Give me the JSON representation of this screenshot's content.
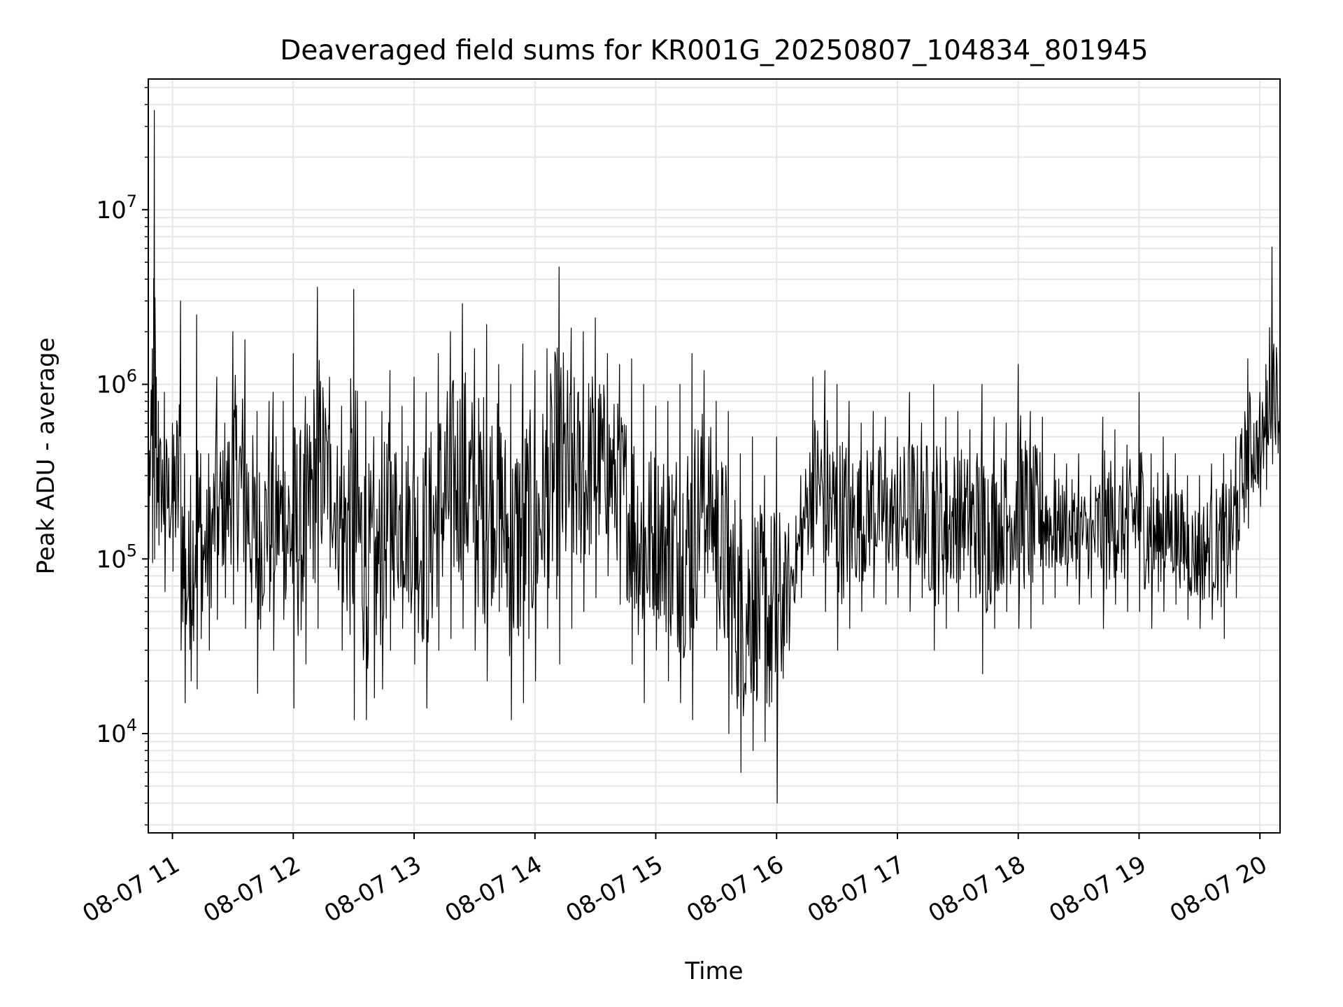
{
  "chart_data": {
    "type": "line",
    "title": "Deaveraged field sums for KR001G_20250807_104834_801945",
    "xlabel": "Time",
    "ylabel": "Peak ADU - average",
    "x_axis": {
      "type": "time",
      "range": [
        "2025-08-07 10:48",
        "2025-08-07 20:10"
      ],
      "ticks": [
        "2025-08-07 11:00",
        "2025-08-07 12:00",
        "2025-08-07 13:00",
        "2025-08-07 14:00",
        "2025-08-07 15:00",
        "2025-08-07 16:00",
        "2025-08-07 17:00",
        "2025-08-07 18:00",
        "2025-08-07 19:00",
        "2025-08-07 20:00"
      ],
      "tick_labels": [
        "08-07 11",
        "08-07 12",
        "08-07 13",
        "08-07 14",
        "08-07 15",
        "08-07 16",
        "08-07 17",
        "08-07 18",
        "08-07 19",
        "08-07 20"
      ],
      "tick_label_rotation": 30
    },
    "y_axis": {
      "scale": "log",
      "range": [
        2700,
        56000000
      ],
      "major_ticks": [
        10000,
        100000,
        1000000,
        10000000
      ],
      "tick_labels": [
        {
          "base": "10",
          "exp": "4"
        },
        {
          "base": "10",
          "exp": "5"
        },
        {
          "base": "10",
          "exp": "6"
        },
        {
          "base": "10",
          "exp": "7"
        }
      ]
    },
    "grid": true,
    "legend": "none",
    "line_color": "#000000",
    "grid_color": "#e6e6e6",
    "series": [
      {
        "x": [
          "2025-08-07 10:48",
          "2025-08-07 10:50",
          "2025-08-07 10:51",
          "2025-08-07 10:52",
          "2025-08-07 10:53",
          "2025-08-07 10:56",
          "2025-08-07 11:00",
          "2025-08-07 11:04",
          "2025-08-07 11:06",
          "2025-08-07 11:09",
          "2025-08-07 11:12",
          "2025-08-07 11:14",
          "2025-08-07 11:18",
          "2025-08-07 11:22",
          "2025-08-07 11:26",
          "2025-08-07 11:30",
          "2025-08-07 11:36",
          "2025-08-07 11:42",
          "2025-08-07 11:48",
          "2025-08-07 11:50",
          "2025-08-07 11:55",
          "2025-08-07 12:00",
          "2025-08-07 12:06",
          "2025-08-07 12:12",
          "2025-08-07 12:18",
          "2025-08-07 12:24",
          "2025-08-07 12:30",
          "2025-08-07 12:36",
          "2025-08-07 12:40",
          "2025-08-07 12:44",
          "2025-08-07 12:48",
          "2025-08-07 12:54",
          "2025-08-07 13:00",
          "2025-08-07 13:06",
          "2025-08-07 13:12",
          "2025-08-07 13:18",
          "2025-08-07 13:24",
          "2025-08-07 13:30",
          "2025-08-07 13:36",
          "2025-08-07 13:42",
          "2025-08-07 13:48",
          "2025-08-07 13:54",
          "2025-08-07 14:00",
          "2025-08-07 14:06",
          "2025-08-07 14:12",
          "2025-08-07 14:18",
          "2025-08-07 14:24",
          "2025-08-07 14:30",
          "2025-08-07 14:36",
          "2025-08-07 14:42",
          "2025-08-07 14:48",
          "2025-08-07 14:54",
          "2025-08-07 15:00",
          "2025-08-07 15:06",
          "2025-08-07 15:12",
          "2025-08-07 15:18",
          "2025-08-07 15:24",
          "2025-08-07 15:30",
          "2025-08-07 15:36",
          "2025-08-07 15:42",
          "2025-08-07 15:48",
          "2025-08-07 15:54",
          "2025-08-07 16:00",
          "2025-08-07 16:06",
          "2025-08-07 16:12",
          "2025-08-07 16:18",
          "2025-08-07 16:24",
          "2025-08-07 16:30",
          "2025-08-07 16:36",
          "2025-08-07 16:42",
          "2025-08-07 16:48",
          "2025-08-07 16:54",
          "2025-08-07 17:00",
          "2025-08-07 17:06",
          "2025-08-07 17:12",
          "2025-08-07 17:18",
          "2025-08-07 17:24",
          "2025-08-07 17:30",
          "2025-08-07 17:36",
          "2025-08-07 17:42",
          "2025-08-07 17:48",
          "2025-08-07 17:54",
          "2025-08-07 18:00",
          "2025-08-07 18:06",
          "2025-08-07 18:12",
          "2025-08-07 18:18",
          "2025-08-07 18:24",
          "2025-08-07 18:30",
          "2025-08-07 18:36",
          "2025-08-07 18:42",
          "2025-08-07 18:48",
          "2025-08-07 18:54",
          "2025-08-07 19:00",
          "2025-08-07 19:06",
          "2025-08-07 19:12",
          "2025-08-07 19:18",
          "2025-08-07 19:24",
          "2025-08-07 19:30",
          "2025-08-07 19:36",
          "2025-08-07 19:42",
          "2025-08-07 19:48",
          "2025-08-07 19:54",
          "2025-08-07 20:00",
          "2025-08-07 20:03",
          "2025-08-07 20:06",
          "2025-08-07 20:10"
        ],
        "high": [
          1000000,
          1600000,
          37000000,
          1100000,
          800000,
          900000,
          600000,
          3000000,
          400000,
          300000,
          2500000,
          400000,
          400000,
          1100000,
          600000,
          2000000,
          1800000,
          700000,
          800000,
          900000,
          800000,
          1500000,
          850000,
          3600000,
          1100000,
          750000,
          3500000,
          800000,
          500000,
          700000,
          1200000,
          750000,
          1100000,
          900000,
          1500000,
          2000000,
          2900000,
          1600000,
          2200000,
          1300000,
          1000000,
          1700000,
          1200000,
          1600000,
          4700000,
          2100000,
          2000000,
          2400000,
          1500000,
          1300000,
          1400000,
          1000000,
          750000,
          800000,
          1000000,
          1500000,
          1200000,
          800000,
          700000,
          400000,
          500000,
          300000,
          500000,
          160000,
          300000,
          1100000,
          1200000,
          1000000,
          800000,
          600000,
          700000,
          650000,
          500000,
          900000,
          600000,
          1000000,
          650000,
          700000,
          550000,
          1000000,
          650000,
          600000,
          1300000,
          700000,
          650000,
          400000,
          350000,
          400000,
          300000,
          650000,
          550000,
          450000,
          900000,
          400000,
          500000,
          400000,
          300000,
          300000,
          350000,
          400000,
          500000,
          1400000,
          900000,
          1300000,
          6100000,
          1200000
        ],
        "low": [
          100000,
          95000,
          100000,
          150000,
          120000,
          65000,
          85000,
          30000,
          15000,
          20000,
          18000,
          35000,
          30000,
          45000,
          60000,
          55000,
          40000,
          17000,
          50000,
          30000,
          45000,
          14000,
          25000,
          40000,
          90000,
          30000,
          12000,
          12000,
          16000,
          18000,
          30000,
          40000,
          25000,
          14000,
          30000,
          35000,
          40000,
          30000,
          20000,
          50000,
          12000,
          15000,
          20000,
          40000,
          25000,
          40000,
          50000,
          60000,
          80000,
          55000,
          25000,
          15000,
          30000,
          20000,
          15000,
          12000,
          60000,
          30000,
          10000,
          6000,
          8000,
          9000,
          4000,
          30000,
          60000,
          80000,
          50000,
          30000,
          40000,
          50000,
          60000,
          55000,
          60000,
          50000,
          60000,
          30000,
          40000,
          50000,
          60000,
          22000,
          40000,
          50000,
          40000,
          40000,
          55000,
          60000,
          70000,
          55000,
          60000,
          40000,
          55000,
          50000,
          50000,
          40000,
          50000,
          55000,
          45000,
          40000,
          45000,
          35000,
          60000,
          150000,
          200000,
          250000,
          350000,
          300000
        ]
      }
    ]
  }
}
